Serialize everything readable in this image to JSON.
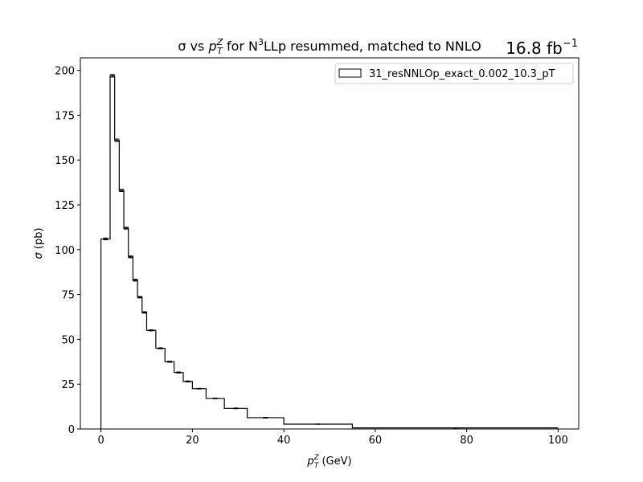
{
  "chart_data": {
    "type": "histogram-step",
    "title": {
      "prefix": "σ vs ",
      "var": "p",
      "var_sub": "T",
      "var_sup": "Z",
      "mid": " for N",
      "order_sup": "3",
      "suffix": "LLp resummed, matched to NNLO"
    },
    "luminosity": {
      "value": "16.8 fb",
      "sup": "−1"
    },
    "xlabel": {
      "var": "p",
      "sub": "T",
      "sup": "Z",
      "unit": " (GeV)"
    },
    "ylabel": {
      "var": "σ",
      "unit": " (pb)"
    },
    "xlim": [
      -4.5,
      104.5
    ],
    "ylim": [
      0,
      207
    ],
    "xticks": [
      0,
      20,
      40,
      60,
      80,
      100
    ],
    "yticks": [
      0,
      25,
      50,
      75,
      100,
      125,
      150,
      175,
      200
    ],
    "legend": {
      "position": "top-right",
      "entries": [
        "31_resNNLOp_exact_0.002_10.3_pT"
      ]
    },
    "series": [
      {
        "name": "31_resNNLOp_exact_0.002_10.3_pT",
        "bin_edges": [
          0,
          2,
          3,
          4,
          5,
          6,
          7,
          8,
          9,
          10,
          12,
          14,
          16,
          18,
          20,
          23,
          27,
          32,
          40,
          55,
          100
        ],
        "values": [
          106,
          197,
          161,
          133,
          112,
          96,
          83,
          73.5,
          65,
          55,
          45,
          37.5,
          31.5,
          26.5,
          22.5,
          17,
          11.5,
          6.3,
          2.7,
          0.6
        ],
        "errors": [
          0.5,
          0.7,
          0.7,
          0.6,
          0.5,
          0.5,
          0.5,
          0.4,
          0.4,
          0.3,
          0.3,
          0.3,
          0.3,
          0.3,
          0.2,
          0.2,
          0.2,
          0.2,
          0.1,
          0.1
        ]
      }
    ],
    "colors": {
      "line": "#000000",
      "background": "#ffffff"
    }
  }
}
